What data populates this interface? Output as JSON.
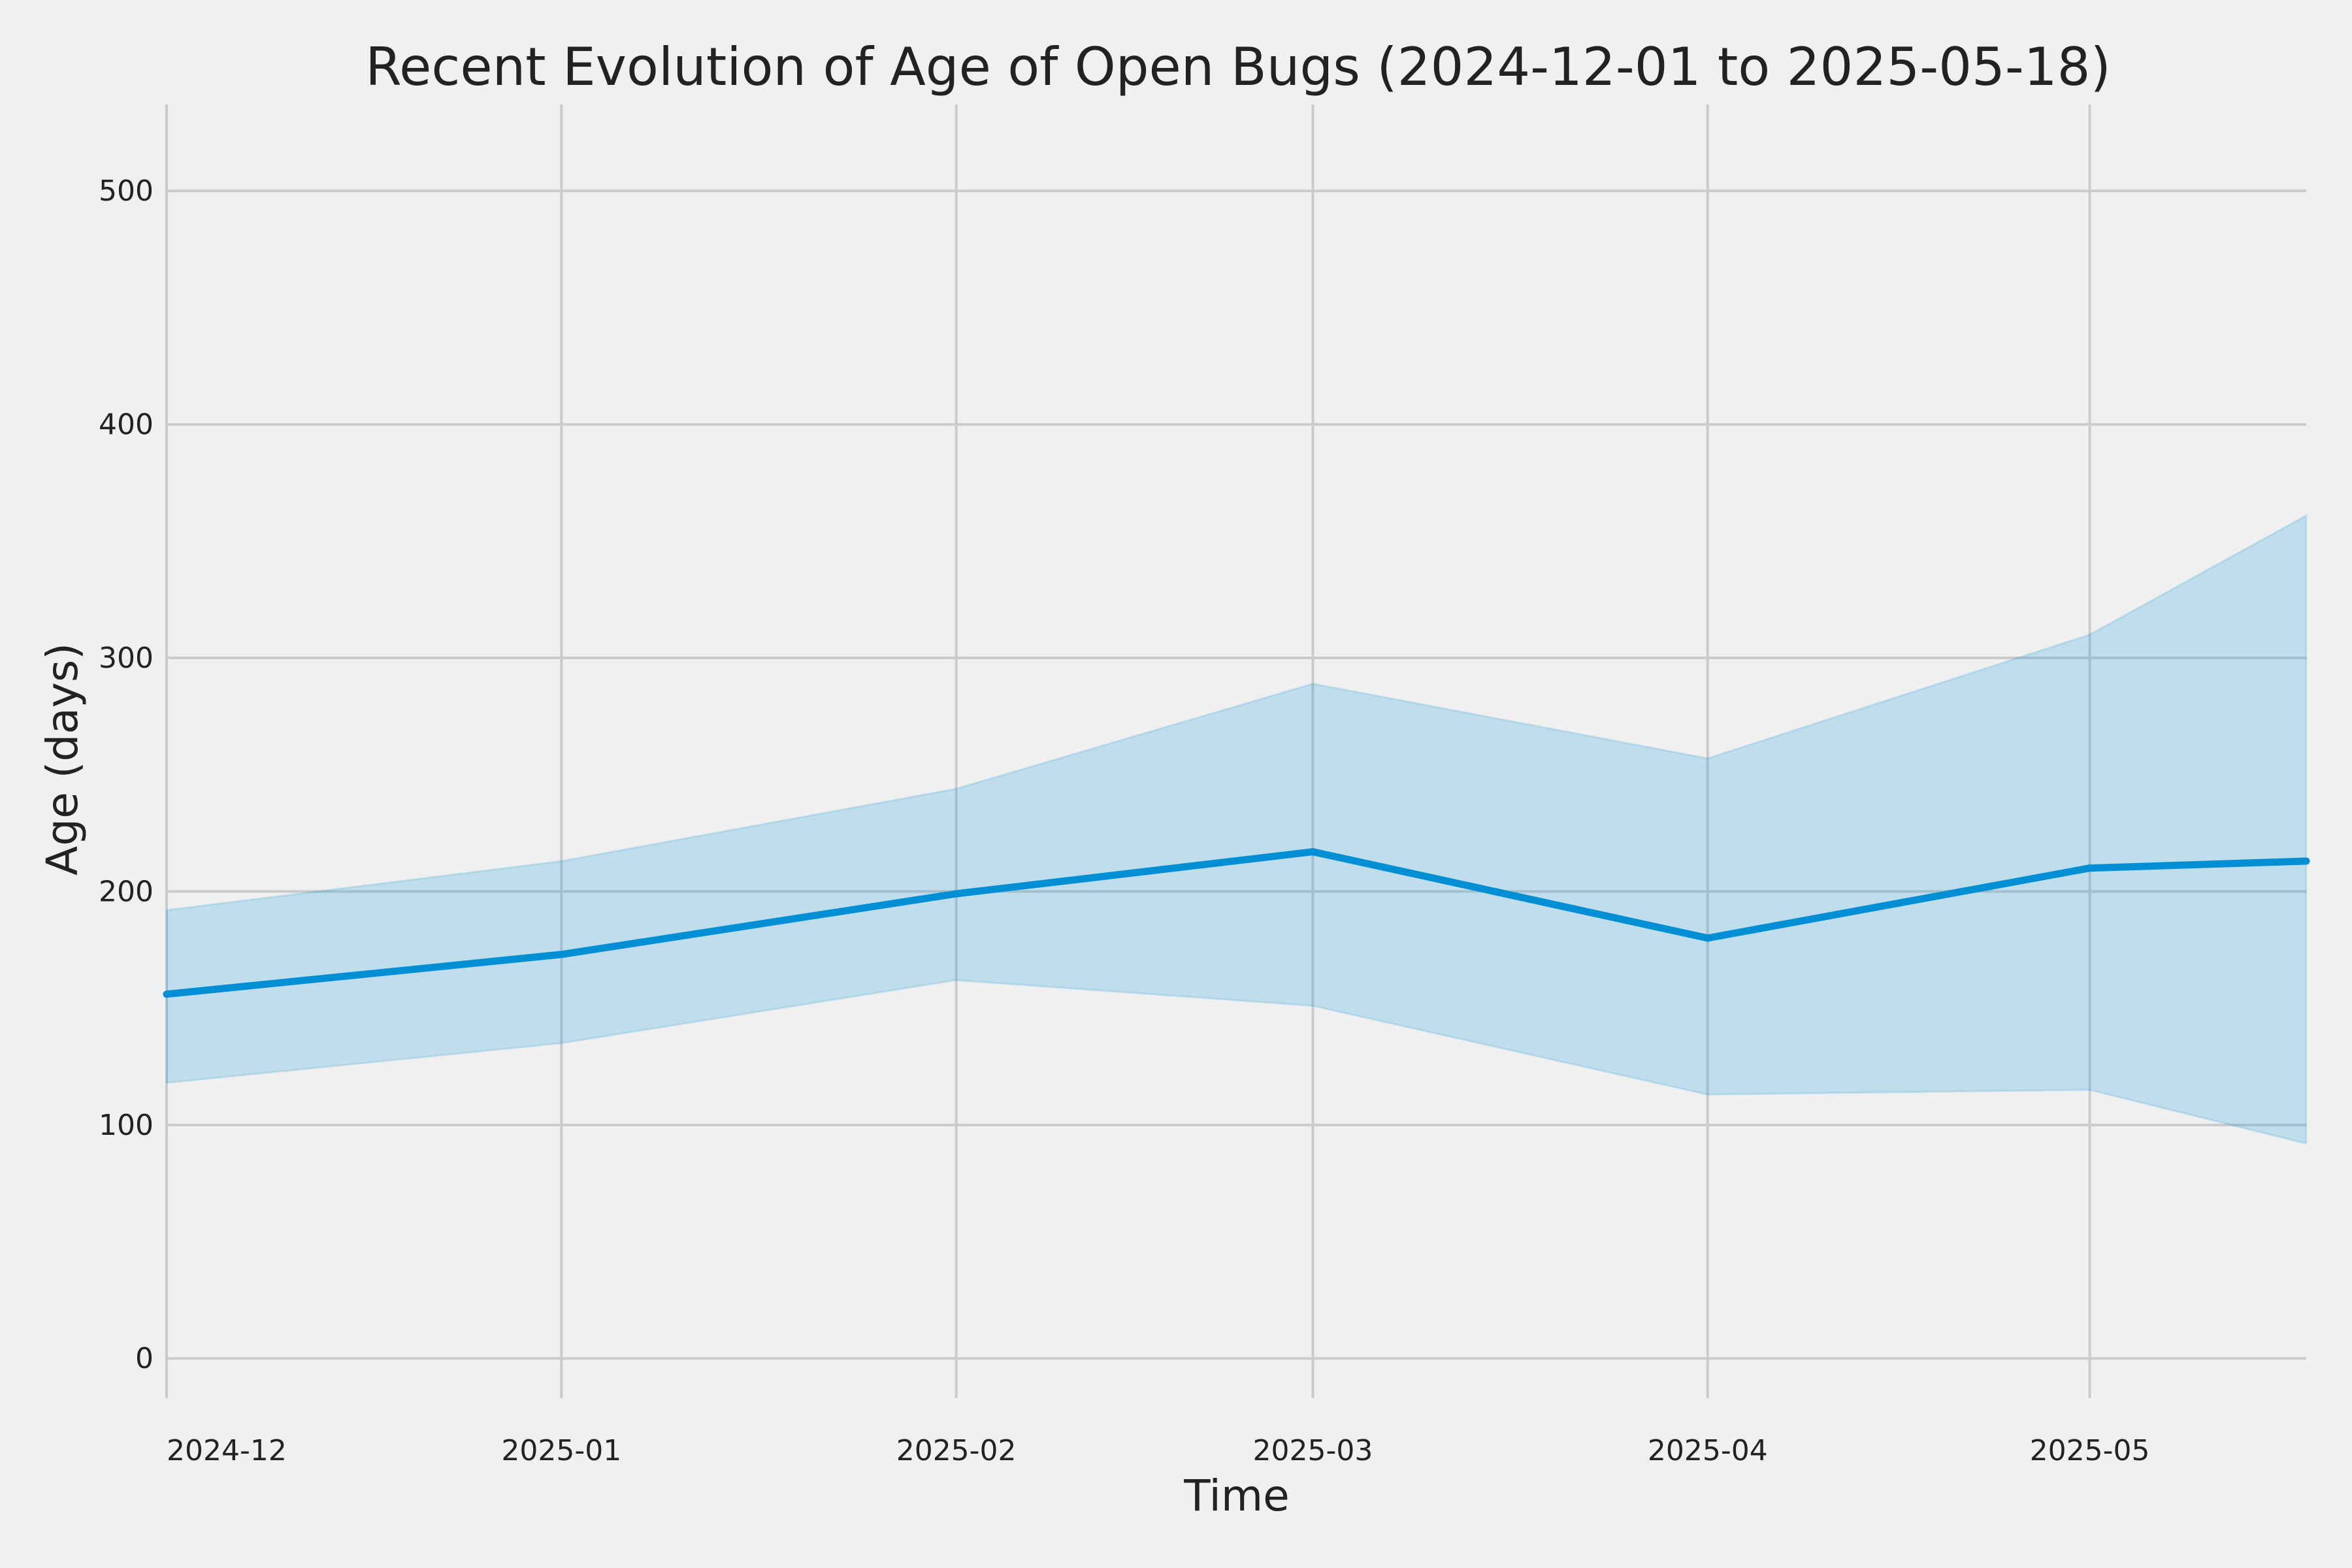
{
  "chart_data": {
    "type": "line",
    "title": "Recent Evolution of Age of Open Bugs (2024-12-01 to 2025-05-18)",
    "xlabel": "Time",
    "ylabel": "Age (days)",
    "x": [
      "2024-12-01",
      "2025-01-01",
      "2025-02-01",
      "2025-03-01",
      "2025-04-01",
      "2025-05-01",
      "2025-05-18"
    ],
    "x_ticks": [
      "2024-12",
      "2025-01",
      "2025-02",
      "2025-03",
      "2025-04",
      "2025-05"
    ],
    "y_ticks": [
      0,
      100,
      200,
      300,
      400,
      500
    ],
    "xlim": [
      "2024-12-01",
      "2025-05-18"
    ],
    "ylim": [
      -17,
      537
    ],
    "grid": true,
    "series": [
      {
        "values": [
          156,
          173,
          199,
          217,
          180,
          210,
          213
        ],
        "lower": [
          118,
          135,
          162,
          151,
          113,
          115,
          92
        ],
        "upper": [
          192,
          213,
          244,
          289,
          257,
          310,
          361
        ]
      }
    ],
    "colors": {
      "background": "#f0f0f0",
      "line": "#008fd5",
      "band": "#b3d6ea",
      "grid": "#cbcbcb",
      "text": "#222222"
    }
  }
}
